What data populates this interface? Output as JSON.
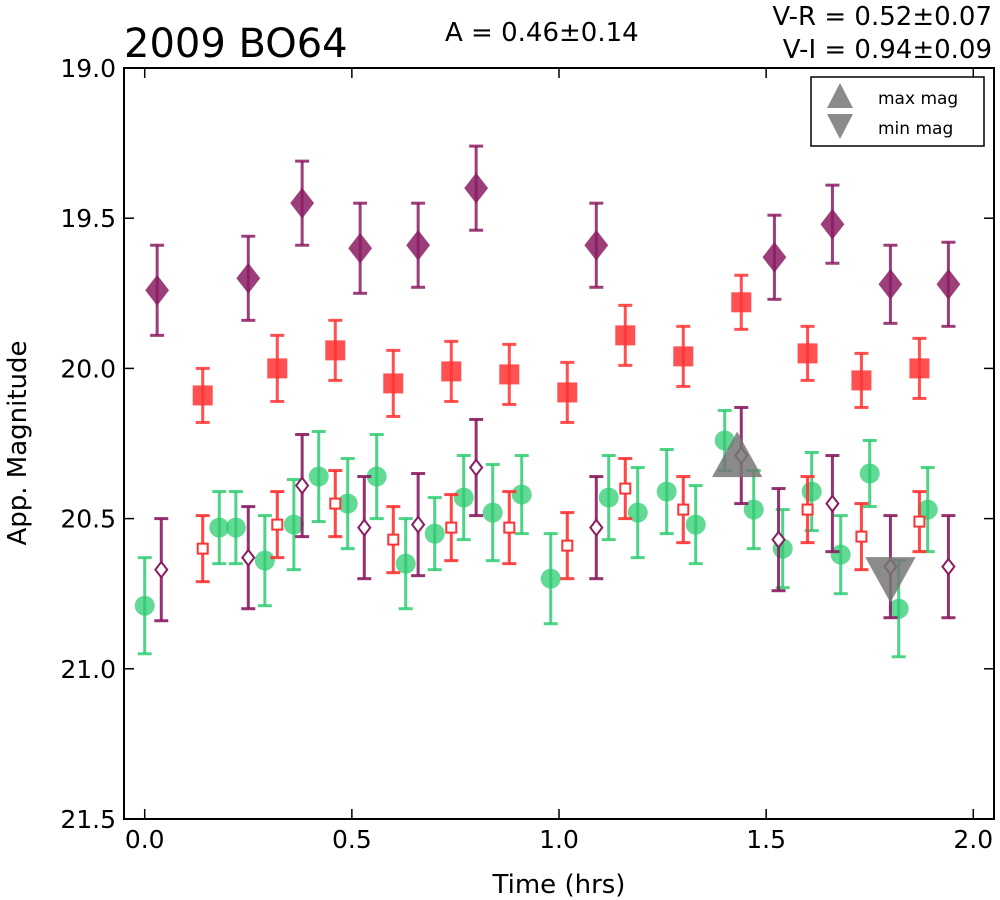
{
  "chart_data": {
    "type": "scatter",
    "title": "2009 BO64",
    "amplitude": "A  = 0.46±0.14",
    "color_vr": "V-R = 0.52±0.07",
    "color_vi": "V-I  = 0.94±0.09",
    "xlabel": "Time (hrs)",
    "ylabel": "App. Magnitude",
    "xlim": [
      -0.05,
      2.05
    ],
    "ylim": [
      21.5,
      19.0
    ],
    "y_inverted": true,
    "xticks": [
      0.0,
      0.5,
      1.0,
      1.5,
      2.0
    ],
    "xtick_labels": [
      "0.0",
      "0.5",
      "1.0",
      "1.5",
      "2.0"
    ],
    "yticks": [
      19.0,
      19.5,
      20.0,
      20.5,
      21.0,
      21.5
    ],
    "ytick_labels": [
      "19.0",
      "19.5",
      "20.0",
      "20.5",
      "21.0",
      "21.5"
    ],
    "grid": false,
    "legend_position": "top-right",
    "legend": [
      {
        "label": "max mag",
        "marker": "triangle-up",
        "color": "#777777"
      },
      {
        "label": "min mag",
        "marker": "triangle-down",
        "color": "#777777"
      }
    ],
    "series": [
      {
        "marker": "diamond",
        "filled": true,
        "color": "#8b1c62",
        "x": [
          0.03,
          0.25,
          0.38,
          0.52,
          0.66,
          0.8,
          1.09,
          1.52,
          1.66,
          1.8,
          1.94
        ],
        "y": [
          19.74,
          19.7,
          19.45,
          19.6,
          19.59,
          19.4,
          19.59,
          19.63,
          19.52,
          19.72,
          19.72
        ],
        "err": [
          0.15,
          0.14,
          0.14,
          0.15,
          0.14,
          0.14,
          0.14,
          0.14,
          0.13,
          0.13,
          0.14
        ]
      },
      {
        "marker": "square",
        "filled": true,
        "color": "#ff3333",
        "x": [
          0.14,
          0.32,
          0.46,
          0.6,
          0.74,
          0.88,
          1.02,
          1.16,
          1.3,
          1.44,
          1.6,
          1.73,
          1.87
        ],
        "y": [
          20.09,
          20.0,
          19.94,
          20.05,
          20.01,
          20.02,
          20.08,
          19.89,
          19.96,
          19.78,
          19.95,
          20.04,
          20.0
        ],
        "err": [
          0.09,
          0.11,
          0.1,
          0.11,
          0.1,
          0.1,
          0.1,
          0.1,
          0.1,
          0.09,
          0.09,
          0.09,
          0.1
        ]
      },
      {
        "marker": "circle",
        "filled": true,
        "color": "#2ecc71",
        "x": [
          0.0,
          0.18,
          0.22,
          0.29,
          0.36,
          0.42,
          0.49,
          0.56,
          0.63,
          0.7,
          0.77,
          0.84,
          0.91,
          0.98,
          1.12,
          1.19,
          1.26,
          1.33,
          1.4,
          1.47,
          1.54,
          1.61,
          1.68,
          1.75,
          1.82,
          1.89
        ],
        "y": [
          20.79,
          20.53,
          20.53,
          20.64,
          20.52,
          20.36,
          20.45,
          20.36,
          20.65,
          20.55,
          20.43,
          20.48,
          20.42,
          20.7,
          20.43,
          20.48,
          20.41,
          20.52,
          20.24,
          20.47,
          20.6,
          20.41,
          20.62,
          20.35,
          20.8,
          20.47
        ],
        "err": [
          0.16,
          0.12,
          0.12,
          0.15,
          0.15,
          0.15,
          0.15,
          0.14,
          0.15,
          0.12,
          0.14,
          0.16,
          0.13,
          0.15,
          0.14,
          0.15,
          0.14,
          0.13,
          0.1,
          0.13,
          0.13,
          0.13,
          0.13,
          0.11,
          0.16,
          0.14
        ]
      },
      {
        "marker": "diamond",
        "filled": false,
        "color": "#8b1c62",
        "x": [
          0.04,
          0.25,
          0.38,
          0.53,
          0.66,
          0.8,
          1.09,
          1.44,
          1.53,
          1.66,
          1.8,
          1.94
        ],
        "y": [
          20.67,
          20.63,
          20.39,
          20.53,
          20.52,
          20.33,
          20.53,
          20.29,
          20.57,
          20.45,
          20.66,
          20.66
        ],
        "err": [
          0.17,
          0.17,
          0.17,
          0.17,
          0.17,
          0.16,
          0.17,
          0.16,
          0.17,
          0.16,
          0.17,
          0.17
        ]
      },
      {
        "marker": "square",
        "filled": false,
        "color": "#ff3333",
        "x": [
          0.14,
          0.32,
          0.46,
          0.6,
          0.74,
          0.88,
          1.02,
          1.16,
          1.3,
          1.6,
          1.73,
          1.87
        ],
        "y": [
          20.6,
          20.52,
          20.45,
          20.57,
          20.53,
          20.53,
          20.59,
          20.4,
          20.47,
          20.47,
          20.56,
          20.51
        ],
        "err": [
          0.11,
          0.11,
          0.11,
          0.11,
          0.11,
          0.12,
          0.11,
          0.1,
          0.11,
          0.11,
          0.11,
          0.1
        ]
      }
    ],
    "extrema": [
      {
        "label": "max mag",
        "marker": "triangle-up",
        "x": 1.43,
        "y": 20.29,
        "color": "#777777"
      },
      {
        "label": "min mag",
        "marker": "triangle-down",
        "x": 1.8,
        "y": 20.7,
        "color": "#777777"
      }
    ]
  }
}
